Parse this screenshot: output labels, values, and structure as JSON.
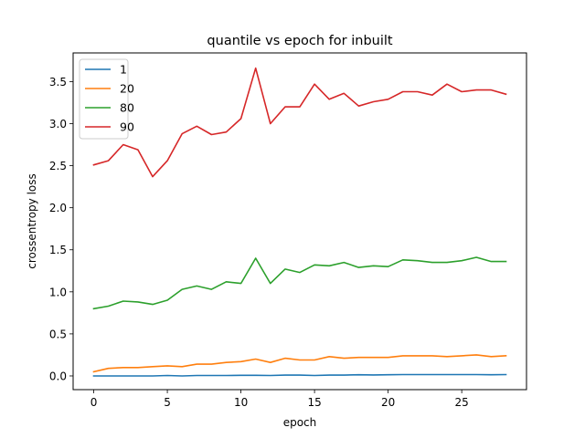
{
  "chart_data": {
    "type": "line",
    "title": "quantile vs epoch for inbuilt",
    "xlabel": "epoch",
    "ylabel": "crossentropy loss",
    "xlim": [
      -1.4,
      29.4
    ],
    "ylim": [
      -0.163,
      3.841
    ],
    "xticks": [
      0,
      5,
      10,
      15,
      20,
      25
    ],
    "yticks": [
      0.0,
      0.5,
      1.0,
      1.5,
      2.0,
      2.5,
      3.0,
      3.5
    ],
    "ytick_labels": [
      "0.0",
      "0.5",
      "1.0",
      "1.5",
      "2.0",
      "2.5",
      "3.0",
      "3.5"
    ],
    "grid": false,
    "legend_position": "upper-left",
    "x": [
      0,
      1,
      2,
      3,
      4,
      5,
      6,
      7,
      8,
      9,
      10,
      11,
      12,
      13,
      14,
      15,
      16,
      17,
      18,
      19,
      20,
      21,
      22,
      23,
      24,
      25,
      26,
      27,
      28
    ],
    "series": [
      {
        "name": "1",
        "color": "#1f77b4",
        "values": [
          0.0,
          0.0,
          0.0,
          0.0,
          0.0,
          0.005,
          0.0,
          0.005,
          0.005,
          0.005,
          0.007,
          0.007,
          0.005,
          0.01,
          0.01,
          0.005,
          0.01,
          0.01,
          0.014,
          0.012,
          0.014,
          0.016,
          0.016,
          0.016,
          0.016,
          0.016,
          0.016,
          0.014,
          0.016
        ]
      },
      {
        "name": "20",
        "color": "#ff7f0e",
        "values": [
          0.05,
          0.09,
          0.1,
          0.1,
          0.11,
          0.12,
          0.11,
          0.14,
          0.14,
          0.16,
          0.17,
          0.2,
          0.16,
          0.21,
          0.19,
          0.19,
          0.23,
          0.21,
          0.22,
          0.22,
          0.22,
          0.24,
          0.24,
          0.24,
          0.23,
          0.24,
          0.25,
          0.23,
          0.24
        ]
      },
      {
        "name": "80",
        "color": "#2ca02c",
        "values": [
          0.8,
          0.83,
          0.89,
          0.88,
          0.85,
          0.9,
          1.03,
          1.07,
          1.03,
          1.12,
          1.1,
          1.4,
          1.1,
          1.27,
          1.23,
          1.32,
          1.31,
          1.35,
          1.29,
          1.31,
          1.3,
          1.38,
          1.37,
          1.35,
          1.35,
          1.37,
          1.41,
          1.36,
          1.36
        ]
      },
      {
        "name": "90",
        "color": "#d62728",
        "values": [
          2.51,
          2.56,
          2.75,
          2.69,
          2.37,
          2.56,
          2.88,
          2.97,
          2.87,
          2.9,
          3.06,
          3.66,
          3.0,
          3.2,
          3.2,
          3.47,
          3.29,
          3.36,
          3.21,
          3.26,
          3.29,
          3.38,
          3.38,
          3.34,
          3.47,
          3.38,
          3.4,
          3.4,
          3.35
        ]
      }
    ]
  }
}
